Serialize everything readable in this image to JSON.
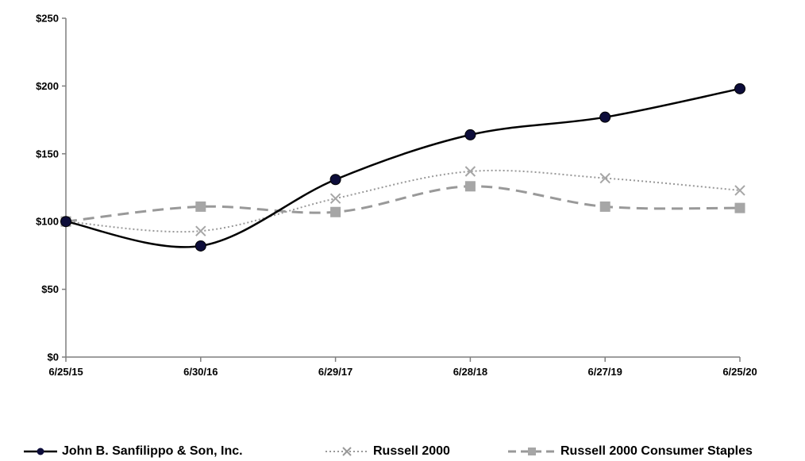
{
  "chart_data": {
    "type": "line",
    "categories": [
      "6/25/15",
      "6/30/16",
      "6/29/17",
      "6/28/18",
      "6/27/19",
      "6/25/20"
    ],
    "y_ticks": [
      "$0",
      "$50",
      "$100",
      "$150",
      "$200",
      "$250"
    ],
    "ylim": [
      0,
      250
    ],
    "grid": false,
    "legend_position": "bottom",
    "series": [
      {
        "name": "John B. Sanfilippo & Son, Inc.",
        "values": [
          100,
          82,
          131,
          164,
          177,
          198
        ],
        "color": "#000000",
        "marker": "circle",
        "marker_color": "#0d0d3a",
        "line_style": "solid"
      },
      {
        "name": "Russell 2000",
        "values": [
          100,
          93,
          117,
          137,
          132,
          123
        ],
        "color": "#999999",
        "marker": "x",
        "line_style": "dotted"
      },
      {
        "name": "Russell 2000 Consumer Staples",
        "values": [
          100,
          111,
          107,
          126,
          111,
          110
        ],
        "color": "#999999",
        "marker": "square",
        "line_style": "dashed"
      }
    ]
  }
}
